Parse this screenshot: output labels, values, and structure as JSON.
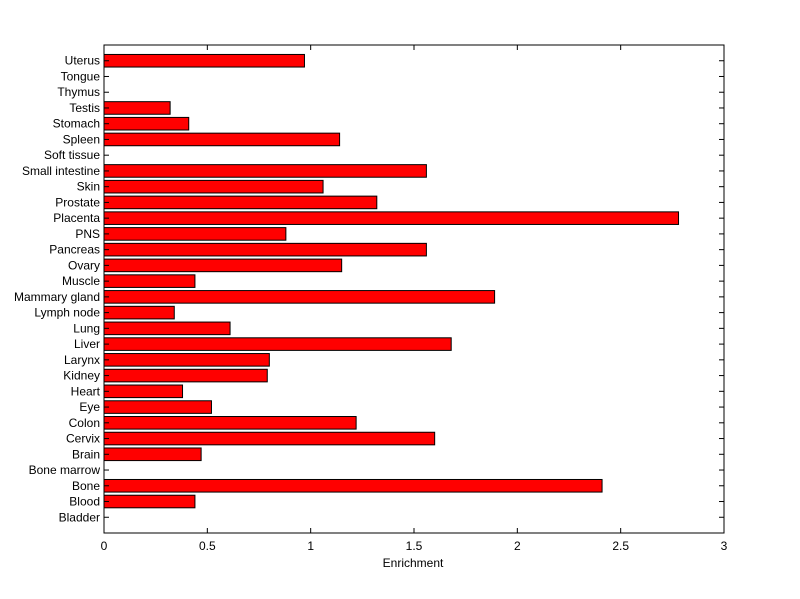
{
  "chart_data": {
    "type": "bar",
    "orientation": "horizontal",
    "title": "",
    "xlabel": "Enrichment",
    "ylabel": "",
    "xlim": [
      0,
      3
    ],
    "xticks": [
      "0",
      "0.5",
      "1",
      "1.5",
      "2",
      "2.5",
      "3"
    ],
    "grid": false,
    "bar_color": "#ff0000",
    "bar_edge_color": "#000000",
    "categories": [
      "Bladder",
      "Blood",
      "Bone",
      "Bone marrow",
      "Brain",
      "Cervix",
      "Colon",
      "Eye",
      "Heart",
      "Kidney",
      "Larynx",
      "Liver",
      "Lung",
      "Lymph node",
      "Mammary gland",
      "Muscle",
      "Ovary",
      "Pancreas",
      "PNS",
      "Placenta",
      "Prostate",
      "Skin",
      "Small intestine",
      "Soft tissue",
      "Spleen",
      "Stomach",
      "Testis",
      "Thymus",
      "Tongue",
      "Uterus"
    ],
    "values": [
      0,
      0.44,
      2.41,
      0,
      0.47,
      1.6,
      1.22,
      0.52,
      0.38,
      0.79,
      0.8,
      1.68,
      0.61,
      0.34,
      1.89,
      0.44,
      1.15,
      1.56,
      0.88,
      2.78,
      1.32,
      1.06,
      1.56,
      0,
      1.14,
      0.41,
      0.32,
      0,
      0,
      0.97
    ]
  }
}
